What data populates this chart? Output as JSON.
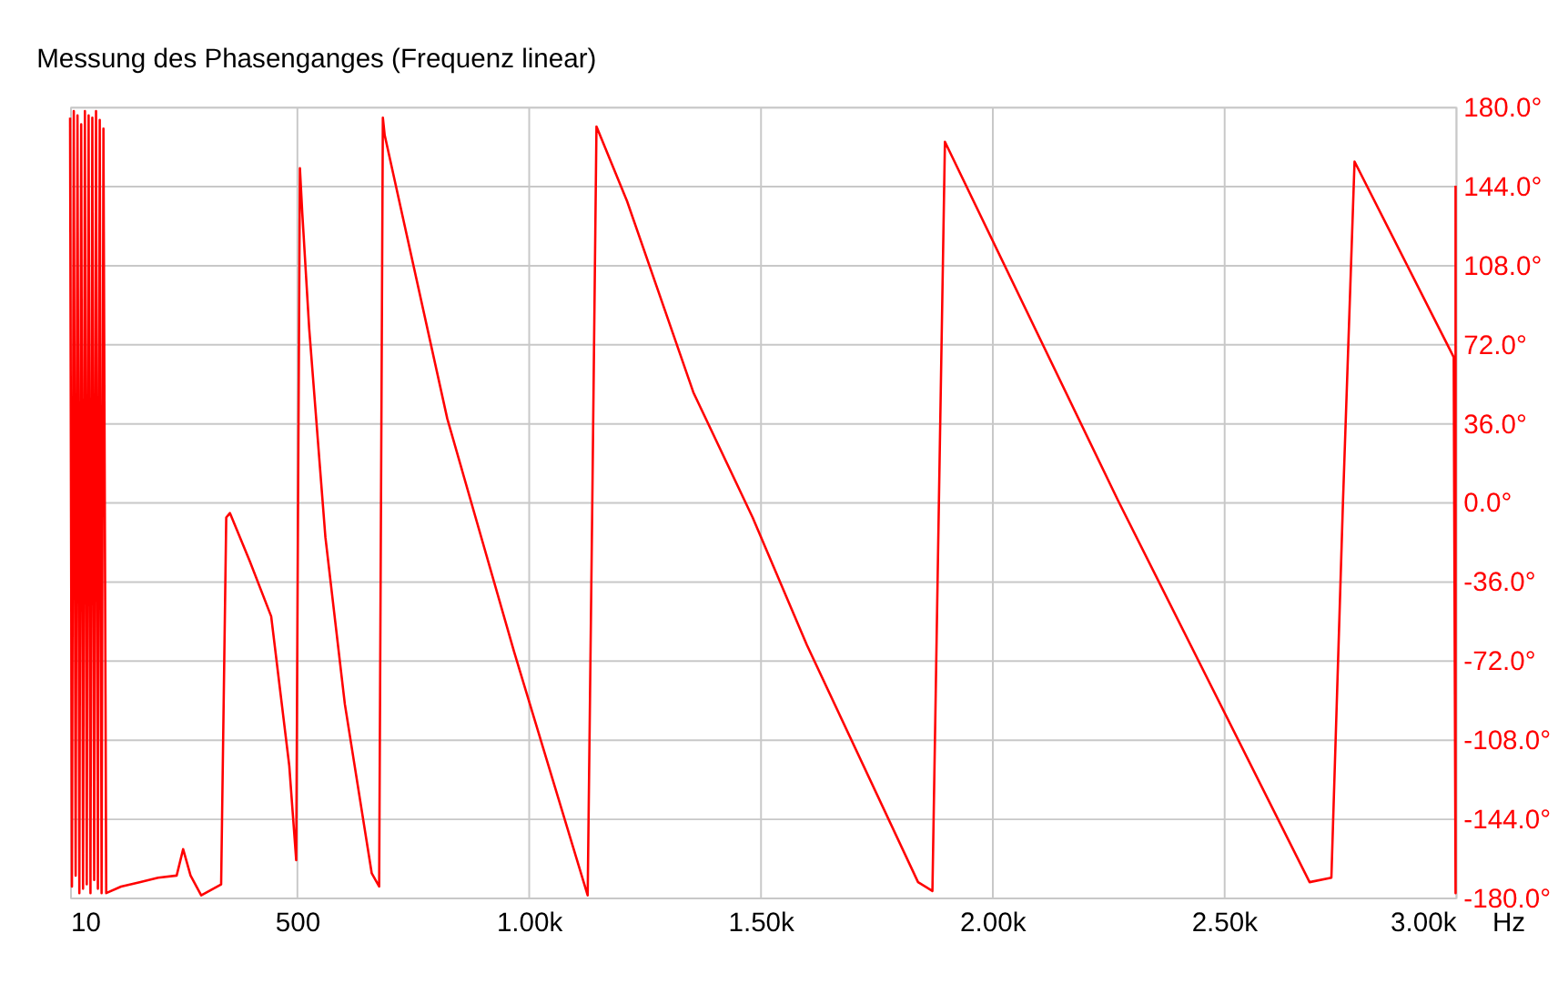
{
  "chart_data": {
    "type": "line",
    "title": "Messung des Phasenganges (Frequenz linear)",
    "x": [
      10,
      14,
      18,
      22,
      26,
      30,
      34,
      38,
      42,
      46,
      50,
      54,
      58,
      62,
      66,
      70,
      74,
      78,
      82,
      88,
      120,
      160,
      200,
      240,
      254,
      270,
      293,
      336,
      347,
      351,
      355,
      398,
      444,
      483,
      498,
      502,
      506,
      511,
      526,
      561,
      603,
      661,
      677,
      681,
      685,
      689,
      824,
      968,
      1127,
      1137,
      1146,
      1212,
      1355,
      1483,
      1600,
      1840,
      1871,
      1885,
      1898,
      2271,
      2685,
      2732,
      2757,
      2782,
      2996,
      3000,
      3000
    ],
    "series": [
      {
        "color": "#ff0000",
        "values": [
          175,
          -175,
          178,
          -170,
          176,
          -178,
          172,
          -176,
          178,
          -174,
          176,
          -178,
          175,
          -172,
          178,
          -176,
          174,
          -178,
          170,
          -178,
          -175,
          -173,
          -171,
          -170,
          -158,
          -170,
          -179,
          -174,
          -7,
          -6,
          -5,
          -27,
          -52,
          -120,
          -163,
          0,
          152,
          132,
          79,
          -16,
          -92,
          -169,
          -175,
          0,
          175,
          167,
          38,
          -68,
          -179,
          0,
          171,
          137,
          50,
          -7,
          -65,
          -173,
          -177,
          0,
          164,
          1,
          -173,
          -171,
          0,
          155,
          66,
          -178,
          144
        ]
      }
    ],
    "xlim": [
      10,
      3000
    ],
    "ylim": [
      -180,
      180
    ],
    "xticks": [
      {
        "value": 10,
        "label": "10"
      },
      {
        "value": 500,
        "label": "500"
      },
      {
        "value": 1000,
        "label": "1.00k"
      },
      {
        "value": 1500,
        "label": "1.50k"
      },
      {
        "value": 2000,
        "label": "2.00k"
      },
      {
        "value": 2500,
        "label": "2.50k"
      },
      {
        "value": 3000,
        "label": "3.00k"
      }
    ],
    "xlabel": "Hz",
    "yticks": [
      {
        "value": 180,
        "label": "180.0°"
      },
      {
        "value": 144,
        "label": "144.0°"
      },
      {
        "value": 108,
        "label": "108.0°"
      },
      {
        "value": 72,
        "label": "72.0°"
      },
      {
        "value": 36,
        "label": "36.0°"
      },
      {
        "value": 0,
        "label": "0.0°"
      },
      {
        "value": -36,
        "label": "-36.0°"
      },
      {
        "value": -72,
        "label": "-72.0°"
      },
      {
        "value": -108,
        "label": "-108.0°"
      },
      {
        "value": -144,
        "label": "-144.0°"
      },
      {
        "value": -180,
        "label": "-180.0°"
      }
    ],
    "grid": true,
    "marker": "none",
    "line_style": "solid"
  }
}
